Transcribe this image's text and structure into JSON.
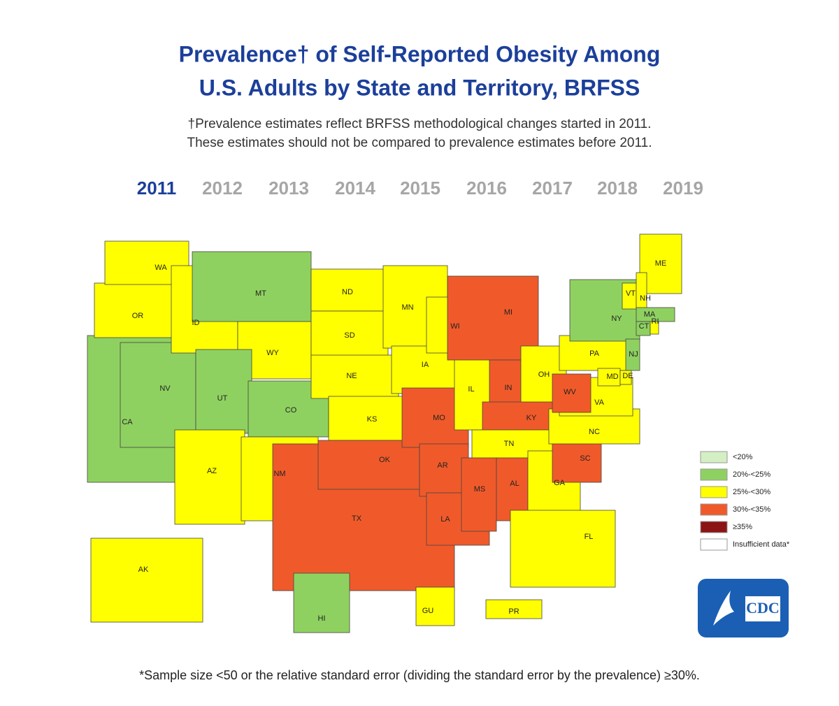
{
  "title_lines": [
    "Prevalence† of Self-Reported Obesity Among",
    "U.S. Adults by State and Territory, BRFSS"
  ],
  "subtitle_lines": [
    "†Prevalence estimates reflect BRFSS methodological changes started in 2011.",
    "These estimates should not be compared to prevalence estimates before 2011."
  ],
  "years": [
    {
      "label": "2011",
      "color": "#1b3f9a"
    },
    {
      "label": "2012",
      "color": "#a6a6a6"
    },
    {
      "label": "2013",
      "color": "#a6a6a6"
    },
    {
      "label": "2014",
      "color": "#a6a6a6"
    },
    {
      "label": "2015",
      "color": "#a6a6a6"
    },
    {
      "label": "2016",
      "color": "#a6a6a6"
    },
    {
      "label": "2017",
      "color": "#a6a6a6"
    },
    {
      "label": "2018",
      "color": "#a6a6a6"
    },
    {
      "label": "2019",
      "color": "#a6a6a6"
    }
  ],
  "legend": [
    {
      "label": "<20%",
      "color": "#d4efc4"
    },
    {
      "label": "20%-<25%",
      "color": "#8fd160"
    },
    {
      "label": "25%-<30%",
      "color": "#ffff00"
    },
    {
      "label": "30%-<35%",
      "color": "#f05a2a"
    },
    {
      "label": "≥35%",
      "color": "#8b1414"
    },
    {
      "label": "Insufficient data*",
      "color": "#ffffff"
    }
  ],
  "states": [
    {
      "label": "CA",
      "color": "#8fd160"
    },
    {
      "label": "OR",
      "color": "#ffff00"
    },
    {
      "label": "WA",
      "color": "#ffff00"
    },
    {
      "label": "NV",
      "color": "#8fd160"
    },
    {
      "label": "ID",
      "color": "#ffff00"
    },
    {
      "label": "MT",
      "color": "#8fd160"
    },
    {
      "label": "WY",
      "color": "#ffff00"
    },
    {
      "label": "UT",
      "color": "#8fd160"
    },
    {
      "label": "CO",
      "color": "#8fd160"
    },
    {
      "label": "AZ",
      "color": "#ffff00"
    },
    {
      "label": "NM",
      "color": "#ffff00"
    },
    {
      "label": "TX",
      "color": "#f05a2a"
    },
    {
      "label": "ND",
      "color": "#ffff00"
    },
    {
      "label": "SD",
      "color": "#ffff00"
    },
    {
      "label": "NE",
      "color": "#ffff00"
    },
    {
      "label": "KS",
      "color": "#ffff00"
    },
    {
      "label": "OK",
      "color": "#f05a2a"
    },
    {
      "label": "MN",
      "color": "#ffff00"
    },
    {
      "label": "IA",
      "color": "#ffff00"
    },
    {
      "label": "MO",
      "color": "#f05a2a"
    },
    {
      "label": "AR",
      "color": "#f05a2a"
    },
    {
      "label": "LA",
      "color": "#f05a2a"
    },
    {
      "label": "WI",
      "color": "#ffff00"
    },
    {
      "label": "IL",
      "color": "#ffff00"
    },
    {
      "label": "MI",
      "color": "#f05a2a"
    },
    {
      "label": "IN",
      "color": "#f05a2a"
    },
    {
      "label": "OH",
      "color": "#ffff00"
    },
    {
      "label": "KY",
      "color": "#f05a2a"
    },
    {
      "label": "TN",
      "color": "#ffff00"
    },
    {
      "label": "MS",
      "color": "#f05a2a"
    },
    {
      "label": "AL",
      "color": "#f05a2a"
    },
    {
      "label": "GA",
      "color": "#ffff00"
    },
    {
      "label": "FL",
      "color": "#ffff00"
    },
    {
      "label": "SC",
      "color": "#f05a2a"
    },
    {
      "label": "NC",
      "color": "#ffff00"
    },
    {
      "label": "VA",
      "color": "#ffff00"
    },
    {
      "label": "WV",
      "color": "#f05a2a"
    },
    {
      "label": "PA",
      "color": "#ffff00"
    },
    {
      "label": "NY",
      "color": "#8fd160"
    },
    {
      "label": "ME",
      "color": "#ffff00"
    },
    {
      "label": "VT",
      "color": "#ffff00"
    },
    {
      "label": "NH",
      "color": "#ffff00"
    },
    {
      "label": "MA",
      "color": "#8fd160"
    },
    {
      "label": "CT",
      "color": "#8fd160"
    },
    {
      "label": "RI",
      "color": "#ffff00"
    },
    {
      "label": "NJ",
      "color": "#8fd160"
    },
    {
      "label": "MD",
      "color": "#ffff00"
    },
    {
      "label": "DE",
      "color": "#ffff00"
    },
    {
      "label": "AK",
      "color": "#ffff00"
    },
    {
      "label": "HI",
      "color": "#8fd160"
    },
    {
      "label": "GU",
      "color": "#ffff00"
    },
    {
      "label": "PR",
      "color": "#ffff00"
    }
  ],
  "logo": {
    "text": "CDC"
  },
  "footnote": "*Sample size <50 or the relative standard error (dividing the standard error by the prevalence) ≥30%."
}
